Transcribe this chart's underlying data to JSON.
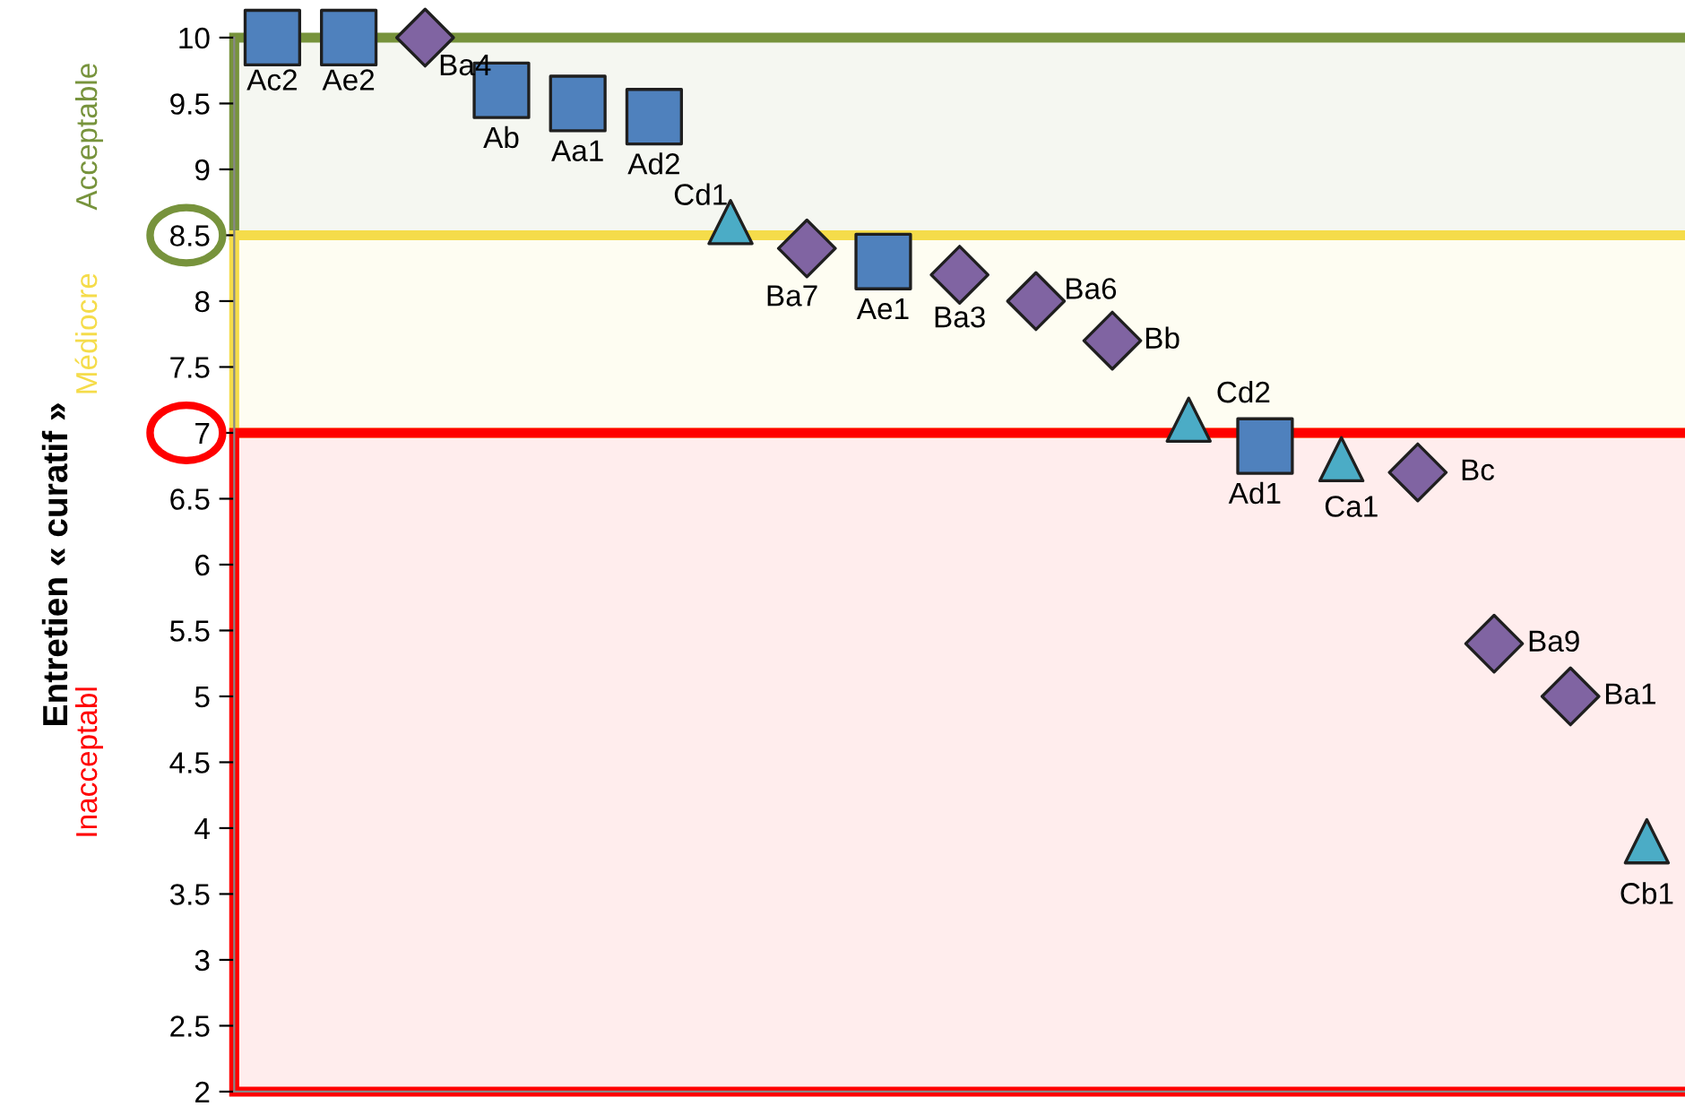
{
  "chart_data": {
    "type": "scatter",
    "ylabel": "Entretien « curatif »",
    "categories": [
      null,
      null,
      null,
      null,
      null,
      null,
      null,
      null,
      null,
      null,
      null,
      null,
      null,
      null,
      null,
      null,
      null,
      null,
      null
    ],
    "ylim": [
      2,
      10
    ],
    "yticks": [
      2,
      2.5,
      3,
      3.5,
      4,
      4.5,
      5,
      5.5,
      6,
      6.5,
      7,
      7.5,
      8,
      8.5,
      9,
      9.5,
      10
    ],
    "grid": false,
    "series": [
      {
        "color": "#4f81bd",
        "marker": "square",
        "values": [
          10,
          10,
          null,
          9.6,
          9.5,
          9.4,
          null,
          null,
          8.3,
          null,
          null,
          null,
          null,
          6.9,
          null,
          null,
          null,
          null,
          null
        ]
      },
      {
        "color": "#8064a2",
        "marker": "diamond",
        "values": [
          null,
          null,
          10,
          null,
          null,
          null,
          null,
          8.4,
          null,
          8.2,
          8.0,
          7.7,
          null,
          null,
          null,
          6.7,
          5.4,
          5.0,
          null
        ]
      },
      {
        "color": "#4bacc6",
        "marker": "triangle",
        "values": [
          null,
          null,
          null,
          null,
          null,
          null,
          8.6,
          null,
          null,
          null,
          null,
          null,
          7.1,
          null,
          6.8,
          null,
          null,
          null,
          3.9
        ]
      }
    ],
    "bands": [
      {
        "axis": "y",
        "from": 8.5,
        "to": 10,
        "label": "Acceptable",
        "color": "#77933c"
      },
      {
        "axis": "y",
        "from": 7,
        "to": 8.5,
        "label": "Médiocre",
        "color": "#f5dc4a"
      },
      {
        "axis": "y",
        "from": 2,
        "to": 7,
        "label": "Inacceptabl",
        "color": "#ff0000"
      }
    ],
    "annotations": [
      "Ac2",
      "Ae2",
      "Ba4",
      "Ab",
      "Aa1",
      "Ad2",
      "Cd1",
      "Ba7",
      "Ae1",
      "Ba3",
      "Ba6",
      "Bb",
      "Cd2",
      "Ad1",
      "Ca1",
      "Bc",
      "Ba9",
      "Ba1",
      "Cb1"
    ]
  }
}
